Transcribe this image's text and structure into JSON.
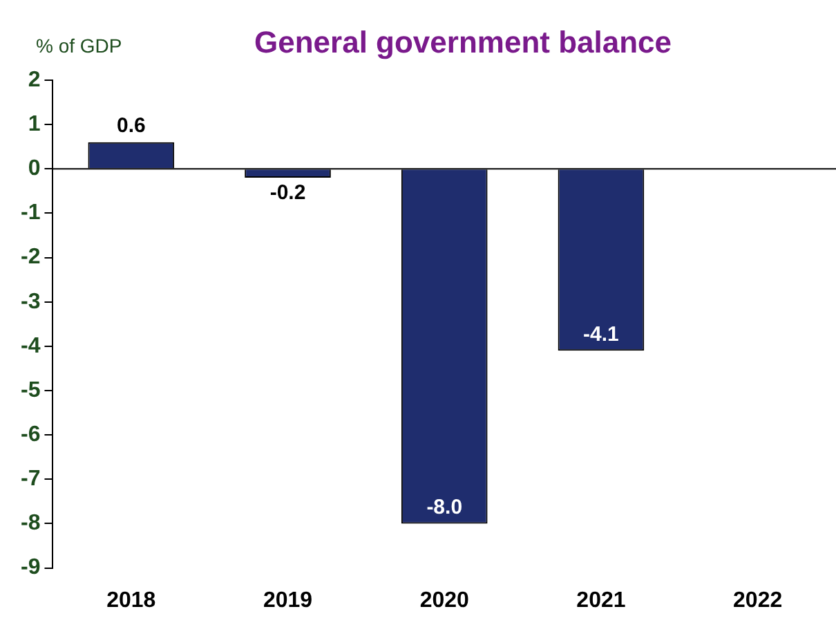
{
  "chart_data": {
    "type": "bar",
    "title": "General government balance",
    "ylabel": "% of GDP",
    "categories": [
      "2018",
      "2019",
      "2020",
      "2021",
      "2022"
    ],
    "values": [
      0.6,
      -0.2,
      -8.0,
      -4.1,
      null
    ],
    "value_labels": [
      "0.6",
      "-0.2",
      "-8.0",
      "-4.1",
      null
    ],
    "color": "#1f2d6e",
    "ylim": [
      -9,
      2
    ],
    "yticks": [
      -9,
      -8,
      -7,
      -6,
      -5,
      -4,
      -3,
      -2,
      -1,
      0,
      1,
      2
    ],
    "legend": false
  }
}
